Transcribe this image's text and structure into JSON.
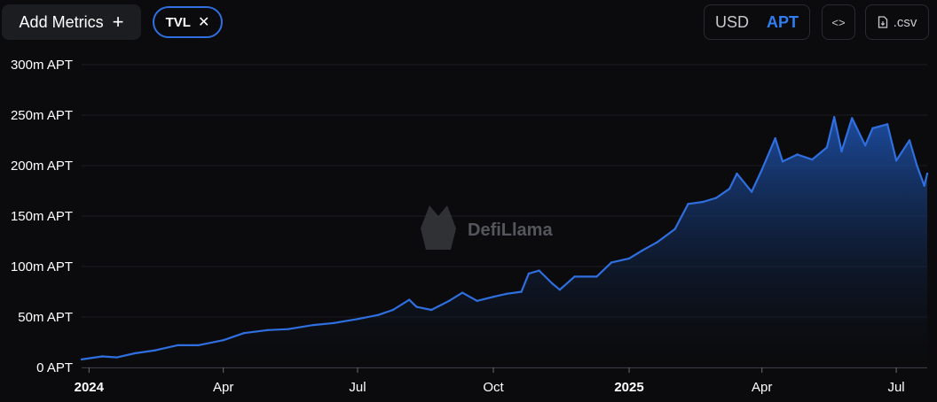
{
  "toolbar": {
    "add_metrics_label": "Add Metrics",
    "add_metrics_plus": "+",
    "metric_chip_label": "TVL",
    "metric_chip_remove": "✕",
    "currency_usd": "USD",
    "currency_apt": "APT",
    "embed_label": "<>",
    "csv_label": ".csv"
  },
  "watermark": "DefiLlama",
  "colors": {
    "background": "#0b0b0d",
    "line": "#2f6fe0",
    "accent": "#2f7df0"
  },
  "chart_data": {
    "type": "area",
    "title": "",
    "xlabel": "",
    "ylabel": "",
    "y_unit": "APT",
    "ylim": [
      0,
      300000000
    ],
    "yticks": [
      0,
      50000000,
      100000000,
      150000000,
      200000000,
      250000000,
      300000000
    ],
    "ytick_labels": [
      "0 APT",
      "50m APT",
      "100m APT",
      "150m APT",
      "200m APT",
      "250m APT",
      "300m APT"
    ],
    "xlim": [
      "2023-12-27",
      "2025-07-22"
    ],
    "xticks": [
      "2024-01-01",
      "2024-04-01",
      "2024-07-01",
      "2024-10-01",
      "2025-01-01",
      "2025-04-01",
      "2025-07-01"
    ],
    "xtick_labels": [
      "2024",
      "Apr",
      "Jul",
      "Oct",
      "2025",
      "Apr",
      "Jul"
    ],
    "xtick_bold": [
      true,
      false,
      false,
      false,
      true,
      false,
      false
    ],
    "grid": true,
    "legend": "none",
    "series": [
      {
        "values_unit": "m APT",
        "points": [
          [
            "2023-12-27",
            8
          ],
          [
            "2024-01-10",
            11
          ],
          [
            "2024-01-20",
            10
          ],
          [
            "2024-02-01",
            14
          ],
          [
            "2024-02-15",
            17
          ],
          [
            "2024-03-01",
            22
          ],
          [
            "2024-03-15",
            22
          ],
          [
            "2024-04-01",
            27
          ],
          [
            "2024-04-15",
            34
          ],
          [
            "2024-05-01",
            37
          ],
          [
            "2024-05-15",
            38
          ],
          [
            "2024-06-01",
            42
          ],
          [
            "2024-06-15",
            44
          ],
          [
            "2024-07-01",
            48
          ],
          [
            "2024-07-15",
            52
          ],
          [
            "2024-07-25",
            57
          ],
          [
            "2024-08-05",
            67
          ],
          [
            "2024-08-10",
            60
          ],
          [
            "2024-08-20",
            57
          ],
          [
            "2024-09-01",
            66
          ],
          [
            "2024-09-10",
            74
          ],
          [
            "2024-09-20",
            66
          ],
          [
            "2024-10-01",
            70
          ],
          [
            "2024-10-10",
            73
          ],
          [
            "2024-10-20",
            75
          ],
          [
            "2024-10-25",
            93
          ],
          [
            "2024-11-01",
            96
          ],
          [
            "2024-11-10",
            83
          ],
          [
            "2024-11-15",
            77
          ],
          [
            "2024-11-25",
            90
          ],
          [
            "2024-12-10",
            90
          ],
          [
            "2024-12-20",
            104
          ],
          [
            "2025-01-01",
            108
          ],
          [
            "2025-01-10",
            116
          ],
          [
            "2025-01-20",
            124
          ],
          [
            "2025-02-01",
            137
          ],
          [
            "2025-02-10",
            162
          ],
          [
            "2025-02-20",
            164
          ],
          [
            "2025-03-01",
            168
          ],
          [
            "2025-03-10",
            177
          ],
          [
            "2025-03-15",
            192
          ],
          [
            "2025-03-25",
            174
          ],
          [
            "2025-04-01",
            196
          ],
          [
            "2025-04-10",
            227
          ],
          [
            "2025-04-15",
            204
          ],
          [
            "2025-04-25",
            211
          ],
          [
            "2025-05-05",
            206
          ],
          [
            "2025-05-15",
            218
          ],
          [
            "2025-05-20",
            248
          ],
          [
            "2025-05-25",
            214
          ],
          [
            "2025-06-01",
            247
          ],
          [
            "2025-06-10",
            220
          ],
          [
            "2025-06-15",
            237
          ],
          [
            "2025-06-25",
            241
          ],
          [
            "2025-07-01",
            205
          ],
          [
            "2025-07-10",
            225
          ],
          [
            "2025-07-15",
            200
          ],
          [
            "2025-07-20",
            180
          ],
          [
            "2025-07-22",
            192
          ]
        ]
      }
    ]
  }
}
